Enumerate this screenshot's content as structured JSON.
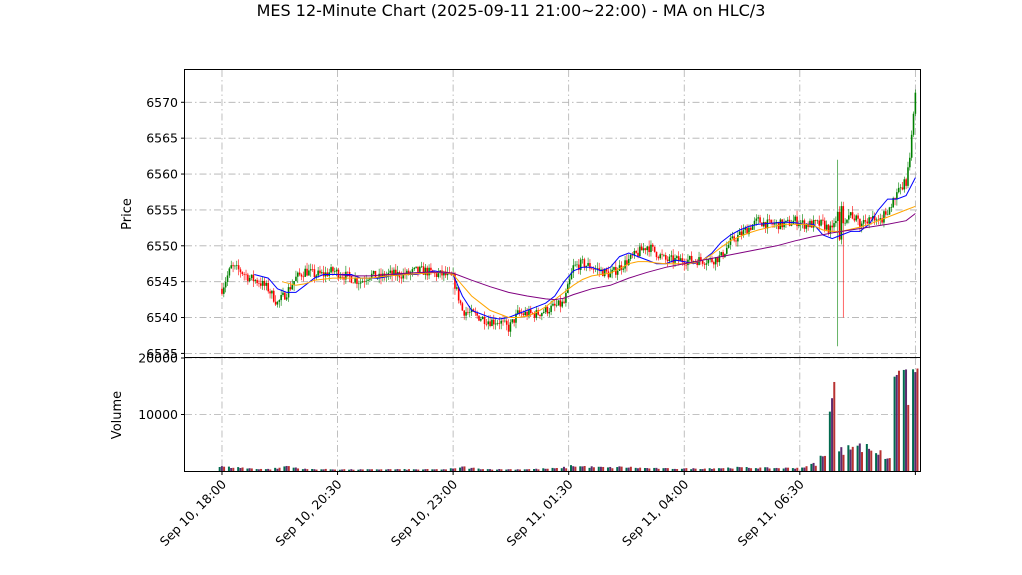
{
  "chart_data": {
    "type": "candlestick",
    "title": "MES 12-Minute Chart (2025-09-11 21:00~22:00) - MA on HLC/3",
    "price_panel": {
      "ylabel": "Price",
      "ylim": [
        6534.5,
        6574.5
      ],
      "yticks": [
        6535,
        6540,
        6545,
        6550,
        6555,
        6560,
        6565,
        6570
      ],
      "ytick_labels": [
        "6535",
        "6540",
        "6545",
        "6550",
        "6555",
        "6560",
        "6565",
        "6570"
      ]
    },
    "volume_panel": {
      "ylabel": "Volume",
      "ylim": [
        0,
        20000
      ],
      "yticks": [
        10000,
        20000
      ],
      "ytick_labels": [
        "10000",
        "20000"
      ]
    },
    "xticks": [
      {
        "label": "Sep 10, 18:00",
        "bar": 0
      },
      {
        "label": "Sep 10, 20:30",
        "bar": 12.5
      },
      {
        "label": "Sep 10, 23:00",
        "bar": 25
      },
      {
        "label": "Sep 11, 01:30",
        "bar": 37.5
      },
      {
        "label": "Sep 11, 04:00",
        "bar": 50
      },
      {
        "label": "Sep 11, 06:30",
        "bar": 62.5
      }
    ],
    "x_range_bars": [
      -4,
      75.5
    ],
    "price_path": [
      [
        0,
        6544
      ],
      [
        1,
        6547
      ],
      [
        2,
        6546.5
      ],
      [
        3,
        6545.5
      ],
      [
        4,
        6545
      ],
      [
        5,
        6544
      ],
      [
        6,
        6542
      ],
      [
        7,
        6543.5
      ],
      [
        8,
        6545.5
      ],
      [
        9,
        6546.5
      ],
      [
        10,
        6546
      ],
      [
        11,
        6546
      ],
      [
        12,
        6546.5
      ],
      [
        13,
        6546
      ],
      [
        14,
        6545.5
      ],
      [
        15,
        6545
      ],
      [
        16,
        6546
      ],
      [
        17,
        6545.5
      ],
      [
        18,
        6546
      ],
      [
        19,
        6546
      ],
      [
        20,
        6546
      ],
      [
        21,
        6546.5
      ],
      [
        22,
        6546.5
      ],
      [
        23,
        6546
      ],
      [
        24,
        6546
      ],
      [
        25,
        6545.5
      ],
      [
        26,
        6541
      ],
      [
        27,
        6540.5
      ],
      [
        28,
        6540
      ],
      [
        29,
        6539.5
      ],
      [
        30,
        6539.5
      ],
      [
        31,
        6538.5
      ],
      [
        32,
        6540.5
      ],
      [
        33,
        6540.5
      ],
      [
        34,
        6540.5
      ],
      [
        35,
        6541
      ],
      [
        36,
        6541.5
      ],
      [
        37,
        6542
      ],
      [
        38,
        6547
      ],
      [
        39,
        6547.5
      ],
      [
        40,
        6547
      ],
      [
        41,
        6546.5
      ],
      [
        42,
        6546
      ],
      [
        43,
        6547
      ],
      [
        44,
        6548
      ],
      [
        45,
        6549
      ],
      [
        46,
        6550
      ],
      [
        47,
        6549
      ],
      [
        48,
        6548
      ],
      [
        49,
        6548
      ],
      [
        50,
        6548
      ],
      [
        51,
        6548
      ],
      [
        52,
        6548
      ],
      [
        53,
        6548
      ],
      [
        54,
        6548.5
      ],
      [
        55,
        6550.5
      ],
      [
        56,
        6551.5
      ],
      [
        57,
        6552.5
      ],
      [
        58,
        6553.5
      ],
      [
        59,
        6553
      ],
      [
        60,
        6553
      ],
      [
        61,
        6553
      ],
      [
        62,
        6553.5
      ],
      [
        63,
        6553
      ],
      [
        64,
        6553
      ],
      [
        65,
        6553
      ],
      [
        66,
        6552
      ],
      [
        67,
        6553.5
      ],
      [
        68,
        6554.5
      ],
      [
        69,
        6553
      ],
      [
        70,
        6554
      ],
      [
        71,
        6553
      ],
      [
        72,
        6555
      ],
      [
        73,
        6557
      ],
      [
        74,
        6559
      ],
      [
        74.5,
        6563
      ],
      [
        75,
        6572
      ]
    ],
    "ma_series": [
      {
        "color": "#0000ff",
        "points": [
          [
            3.5,
            6546
          ],
          [
            5,
            6545.5
          ],
          [
            6,
            6544
          ],
          [
            7,
            6543.5
          ],
          [
            8,
            6543.5
          ],
          [
            9,
            6544.5
          ],
          [
            10,
            6545.5
          ],
          [
            11,
            6546
          ],
          [
            12,
            6546
          ],
          [
            14,
            6546
          ],
          [
            15,
            6545.5
          ],
          [
            17,
            6545.5
          ],
          [
            19,
            6546
          ],
          [
            21,
            6546
          ],
          [
            23,
            6546.5
          ],
          [
            25,
            6546
          ],
          [
            26,
            6543
          ],
          [
            27,
            6541
          ],
          [
            28,
            6540.5
          ],
          [
            29,
            6540
          ],
          [
            30,
            6539.8
          ],
          [
            31,
            6540
          ],
          [
            32,
            6540.5
          ],
          [
            33,
            6541
          ],
          [
            34,
            6541.5
          ],
          [
            35,
            6542
          ],
          [
            36,
            6543
          ],
          [
            37,
            6545
          ],
          [
            38,
            6546.5
          ],
          [
            39,
            6547
          ],
          [
            40,
            6547
          ],
          [
            41,
            6546.5
          ],
          [
            42,
            6547
          ],
          [
            43,
            6548.5
          ],
          [
            44,
            6549
          ],
          [
            45,
            6548.5
          ],
          [
            46,
            6548
          ],
          [
            47,
            6547.5
          ],
          [
            48,
            6547.5
          ],
          [
            49,
            6548
          ],
          [
            50,
            6547.8
          ],
          [
            51,
            6547.5
          ],
          [
            52,
            6548
          ],
          [
            53,
            6549
          ],
          [
            54,
            6550.5
          ],
          [
            55,
            6551.5
          ],
          [
            56,
            6552.2
          ],
          [
            57,
            6552.7
          ],
          [
            58,
            6553
          ],
          [
            59,
            6553.1
          ],
          [
            60,
            6553.2
          ],
          [
            61,
            6553.3
          ],
          [
            62,
            6553.2
          ],
          [
            63,
            6553
          ],
          [
            64,
            6553
          ],
          [
            65,
            6551.5
          ],
          [
            66,
            6551
          ],
          [
            67,
            6551.5
          ],
          [
            68,
            6552
          ],
          [
            69,
            6552
          ],
          [
            70,
            6553
          ],
          [
            71,
            6555
          ],
          [
            72,
            6556.5
          ],
          [
            73,
            6556.5
          ],
          [
            74,
            6557
          ],
          [
            75,
            6559.5
          ]
        ]
      },
      {
        "color": "#ffa500",
        "points": [
          [
            6.5,
            6545
          ],
          [
            8,
            6544.5
          ],
          [
            9,
            6544.7
          ],
          [
            10,
            6545.2
          ],
          [
            12,
            6545.5
          ],
          [
            14,
            6545.5
          ],
          [
            16,
            6545.5
          ],
          [
            18,
            6545.8
          ],
          [
            20,
            6546
          ],
          [
            22,
            6546.2
          ],
          [
            24,
            6546.3
          ],
          [
            25,
            6546
          ],
          [
            26,
            6544.5
          ],
          [
            27,
            6543
          ],
          [
            28,
            6542
          ],
          [
            29,
            6541
          ],
          [
            30,
            6540.5
          ],
          [
            31,
            6540
          ],
          [
            32,
            6540
          ],
          [
            33,
            6540.2
          ],
          [
            34,
            6540.7
          ],
          [
            35,
            6541.5
          ],
          [
            36,
            6542.5
          ],
          [
            37,
            6543.5
          ],
          [
            38,
            6544.5
          ],
          [
            39,
            6545.3
          ],
          [
            40,
            6545.8
          ],
          [
            41,
            6546
          ],
          [
            42,
            6546.2
          ],
          [
            43,
            6546.8
          ],
          [
            44,
            6547.5
          ],
          [
            45,
            6547.8
          ],
          [
            46,
            6547.8
          ],
          [
            47,
            6547.6
          ],
          [
            48,
            6547.5
          ],
          [
            49,
            6547.5
          ],
          [
            50,
            6547.5
          ],
          [
            51,
            6547.6
          ],
          [
            52,
            6548
          ],
          [
            53,
            6548.8
          ],
          [
            54,
            6549.8
          ],
          [
            55,
            6550.7
          ],
          [
            56,
            6551.3
          ],
          [
            57,
            6551.8
          ],
          [
            58,
            6552.2
          ],
          [
            59,
            6552.5
          ],
          [
            60,
            6552.8
          ],
          [
            61,
            6553
          ],
          [
            62,
            6553
          ],
          [
            63,
            6553
          ],
          [
            64,
            6552.8
          ],
          [
            65,
            6552.2
          ],
          [
            66,
            6552
          ],
          [
            67,
            6552
          ],
          [
            68,
            6552.3
          ],
          [
            69,
            6552.6
          ],
          [
            70,
            6553
          ],
          [
            71,
            6553.5
          ],
          [
            72,
            6554
          ],
          [
            73,
            6554.5
          ],
          [
            74,
            6555
          ],
          [
            75,
            6555.5
          ]
        ]
      },
      {
        "color": "#800080",
        "points": [
          [
            12.5,
            6546
          ],
          [
            14,
            6545.8
          ],
          [
            16,
            6545.8
          ],
          [
            18,
            6546
          ],
          [
            20,
            6546.2
          ],
          [
            22,
            6546.3
          ],
          [
            24,
            6546.3
          ],
          [
            25,
            6546.2
          ],
          [
            27,
            6545.2
          ],
          [
            29,
            6544.3
          ],
          [
            31,
            6543.5
          ],
          [
            33,
            6543
          ],
          [
            35,
            6542.6
          ],
          [
            36,
            6542.5
          ],
          [
            37,
            6542.7
          ],
          [
            38,
            6543.2
          ],
          [
            40,
            6544
          ],
          [
            42,
            6544.5
          ],
          [
            44,
            6545.5
          ],
          [
            46,
            6546.3
          ],
          [
            48,
            6547
          ],
          [
            50,
            6547.5
          ],
          [
            52,
            6548
          ],
          [
            54,
            6548.5
          ],
          [
            56,
            6549
          ],
          [
            58,
            6549.5
          ],
          [
            60,
            6550
          ],
          [
            62,
            6550.7
          ],
          [
            64,
            6551.3
          ],
          [
            66,
            6551.8
          ],
          [
            68,
            6552.2
          ],
          [
            70,
            6552.6
          ],
          [
            72,
            6553
          ],
          [
            74,
            6553.5
          ],
          [
            75,
            6554.5
          ]
        ]
      }
    ],
    "volume": [
      750,
      650,
      600,
      450,
      380,
      330,
      480,
      850,
      600,
      340,
      320,
      300,
      300,
      280,
      260,
      260,
      260,
      300,
      300,
      300,
      280,
      280,
      280,
      280,
      300,
      400,
      700,
      500,
      400,
      320,
      300,
      300,
      300,
      320,
      350,
      400,
      450,
      600,
      900,
      800,
      700,
      650,
      600,
      700,
      650,
      550,
      500,
      450,
      430,
      430,
      420,
      420,
      440,
      480,
      520,
      560,
      600,
      580,
      550,
      530,
      520,
      520,
      540,
      700,
      1200,
      2400,
      14000,
      3500,
      5000,
      4200,
      4000,
      3200,
      2400,
      20000,
      14500,
      17000
    ],
    "colors": {
      "up": "#008000",
      "down": "#ff0000",
      "vol_a": "#006a4e",
      "vol_b": "#5c2a6e",
      "grid": "#b0b0b0"
    }
  }
}
